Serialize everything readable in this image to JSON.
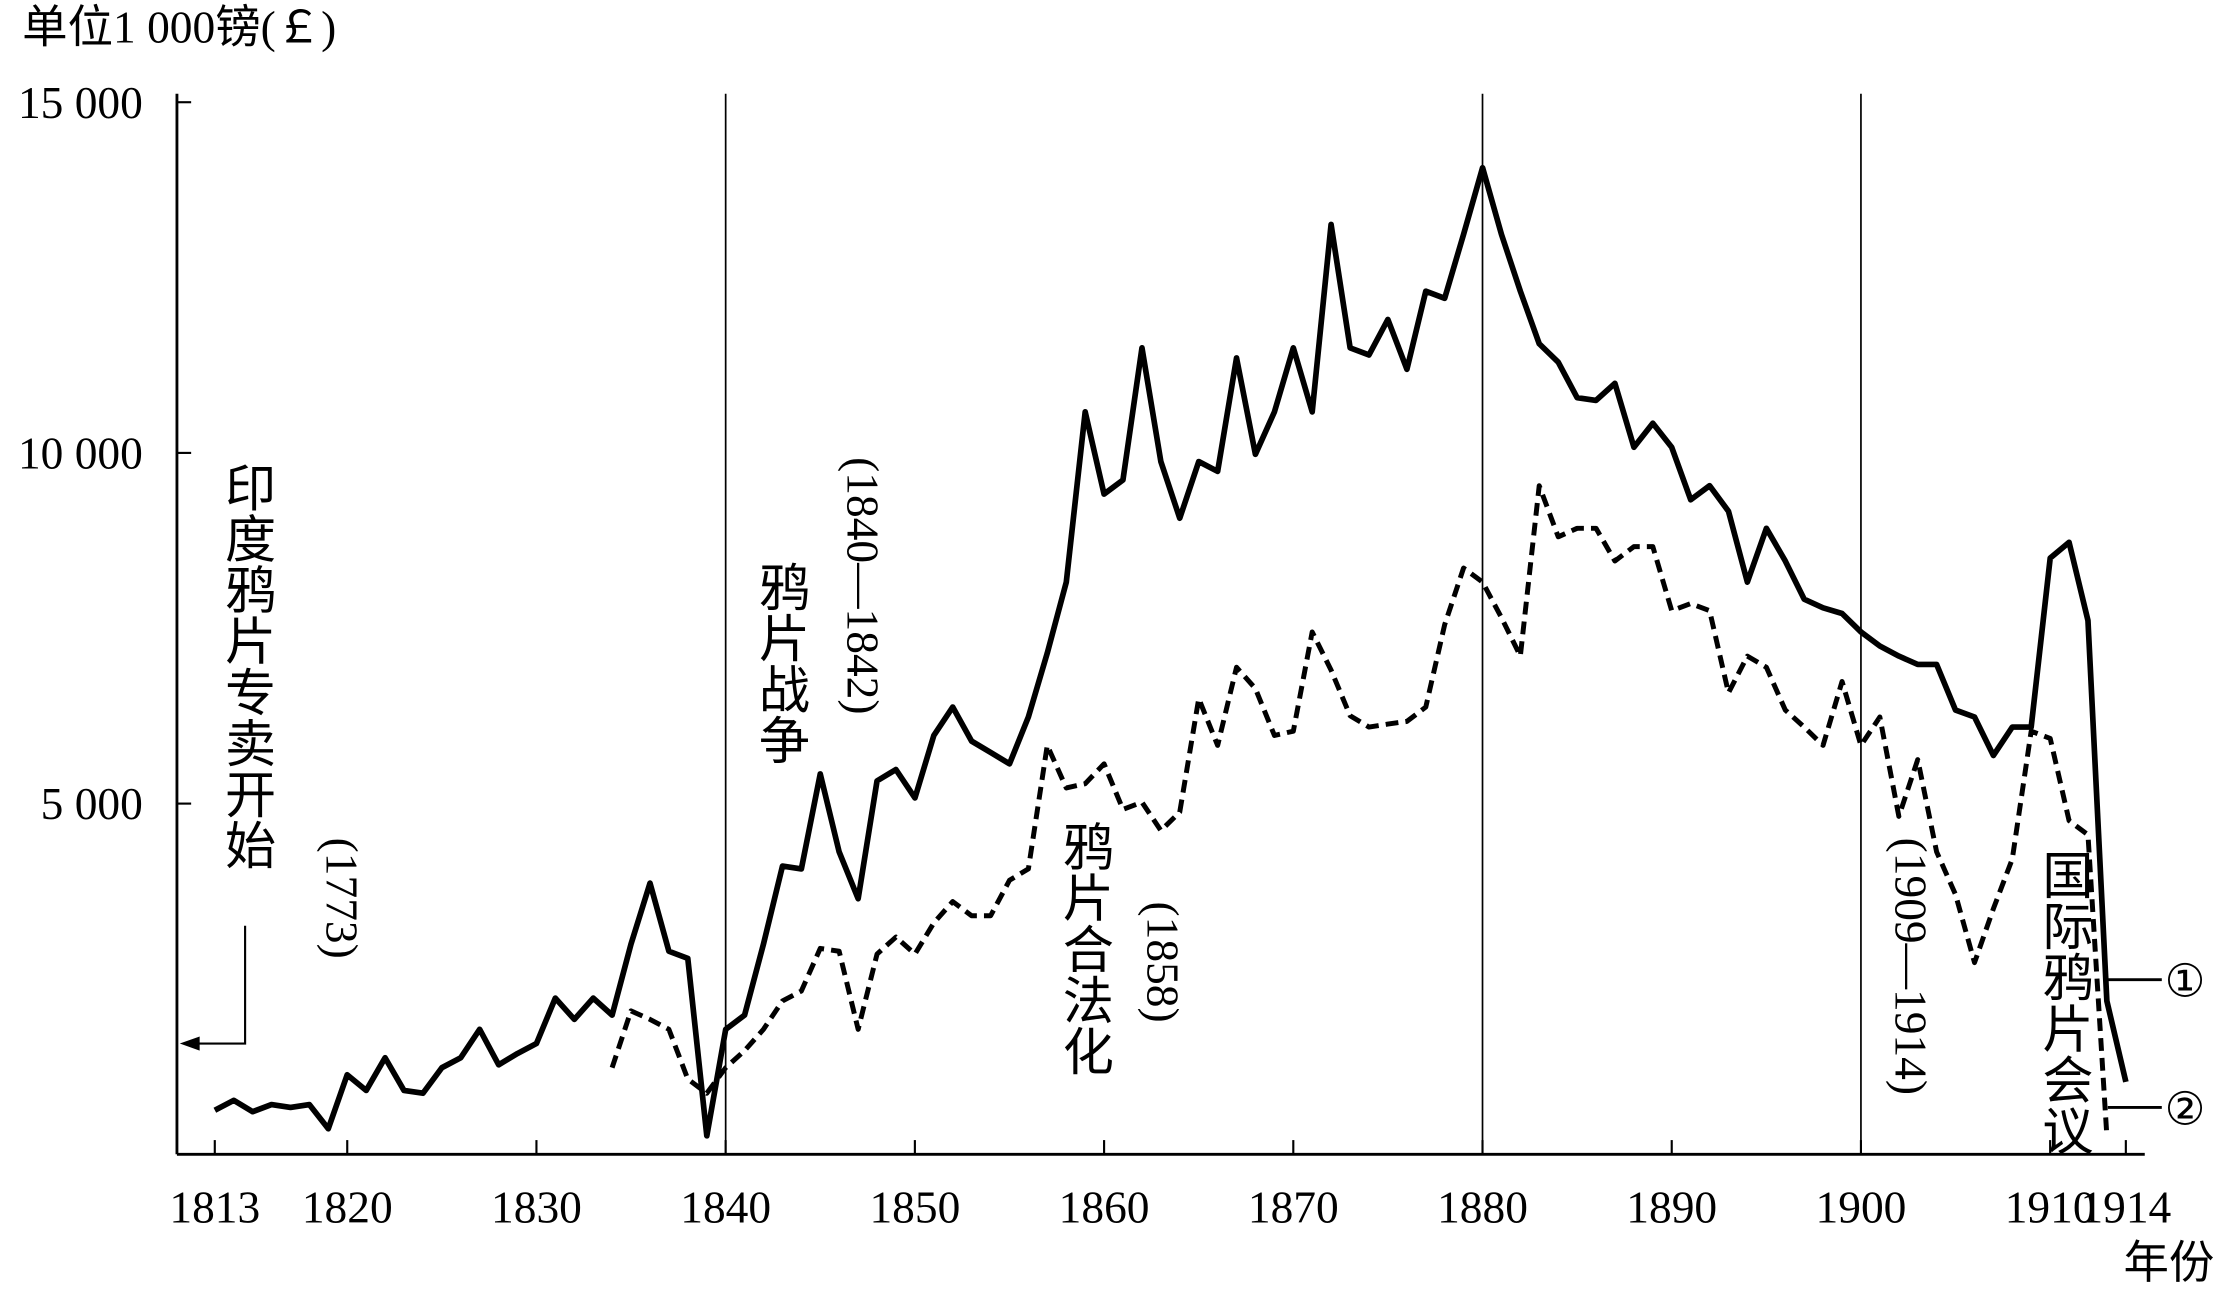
{
  "chart_data": {
    "type": "line",
    "y_label": "单位1 000镑(￡)",
    "x_label": "年份",
    "x": [
      1813,
      1814,
      1815,
      1816,
      1817,
      1818,
      1819,
      1820,
      1821,
      1822,
      1823,
      1824,
      1825,
      1826,
      1827,
      1828,
      1829,
      1830,
      1831,
      1832,
      1833,
      1834,
      1835,
      1836,
      1837,
      1838,
      1839,
      1840,
      1841,
      1842,
      1843,
      1844,
      1845,
      1846,
      1847,
      1848,
      1849,
      1850,
      1851,
      1852,
      1853,
      1854,
      1855,
      1856,
      1857,
      1858,
      1859,
      1860,
      1861,
      1862,
      1863,
      1864,
      1865,
      1866,
      1867,
      1868,
      1869,
      1870,
      1871,
      1872,
      1873,
      1874,
      1875,
      1876,
      1877,
      1878,
      1879,
      1880,
      1881,
      1882,
      1883,
      1884,
      1885,
      1886,
      1887,
      1888,
      1889,
      1890,
      1891,
      1892,
      1893,
      1894,
      1895,
      1896,
      1897,
      1898,
      1899,
      1900,
      1901,
      1902,
      1903,
      1904,
      1905,
      1906,
      1907,
      1908,
      1909,
      1910,
      1911,
      1912,
      1913,
      1914
    ],
    "series": [
      {
        "name": "①",
        "color": "#000000",
        "line_style": "solid",
        "values": [
          627,
          770,
          607,
          708,
          668,
          708,
          364,
          1133,
          911,
          1376,
          911,
          870,
          1235,
          1376,
          1781,
          1275,
          1437,
          1579,
          2226,
          1923,
          2226,
          1983,
          2995,
          3866,
          2894,
          2793,
          263,
          1781,
          1983,
          2995,
          4109,
          4068,
          5424,
          4311,
          3643,
          5323,
          5485,
          5080,
          5971,
          6376,
          5890,
          5728,
          5566,
          6234,
          7145,
          8157,
          10586,
          9412,
          9614,
          11497,
          9877,
          9068,
          9877,
          9736,
          11355,
          9979,
          10586,
          11497,
          10586,
          13257,
          11497,
          11396,
          11902,
          11193,
          12306,
          12205,
          13116,
          14067,
          13116,
          12306,
          11557,
          11294,
          10788,
          10748,
          10991,
          10080,
          10424,
          10080,
          9331,
          9533,
          9169,
          8157,
          8926,
          8460,
          7914,
          7792,
          7711,
          7448,
          7246,
          7104,
          6983,
          6983,
          6335,
          6234,
          5687,
          6092,
          6092,
          8501,
          8724,
          7610,
          2186,
          1032
        ]
      },
      {
        "name": "②",
        "color": "#000000",
        "line_style": "dashed",
        "values": [
          null,
          null,
          null,
          null,
          null,
          null,
          null,
          null,
          null,
          null,
          null,
          null,
          null,
          null,
          null,
          null,
          null,
          null,
          null,
          null,
          null,
          1235,
          2044,
          1923,
          1781,
          1073,
          870,
          1235,
          1478,
          1781,
          2186,
          2328,
          2935,
          2894,
          1781,
          2854,
          3097,
          2854,
          3299,
          3603,
          3400,
          3400,
          3906,
          4068,
          5829,
          5222,
          5283,
          5566,
          4918,
          5020,
          4615,
          4878,
          6497,
          5829,
          6943,
          6639,
          5971,
          6032,
          7448,
          6902,
          6254,
          6092,
          6133,
          6173,
          6376,
          7550,
          8359,
          8157,
          7651,
          7104,
          9533,
          8804,
          8926,
          8926,
          8460,
          8663,
          8663,
          7752,
          7853,
          7752,
          6578,
          7104,
          6943,
          6335,
          6092,
          5829,
          6740,
          5829,
          6234,
          4817,
          5627,
          4311,
          3704,
          2733,
          3502,
          4210,
          6032,
          5930,
          4757,
          4554,
          263,
          null
        ]
      }
    ],
    "xlim": [
      1811,
      1915
    ],
    "ylim": [
      0,
      15000
    ],
    "xticks": [
      1813,
      1820,
      1830,
      1840,
      1850,
      1860,
      1870,
      1880,
      1890,
      1900,
      1910,
      1914
    ],
    "yticks": [
      {
        "value": 5000,
        "label": "5 000"
      },
      {
        "value": 10000,
        "label": "10 000"
      },
      {
        "value": 15000,
        "label": "15 000"
      }
    ],
    "markers": [
      1840,
      1880,
      1900
    ],
    "annotations": [
      "印度鸦片专卖开始",
      "(1773)",
      "鸦片战争",
      "(1840—1842)",
      "鸦片合法化",
      "(1858)",
      "(1909—1914)",
      "国际鸦片会议"
    ]
  }
}
